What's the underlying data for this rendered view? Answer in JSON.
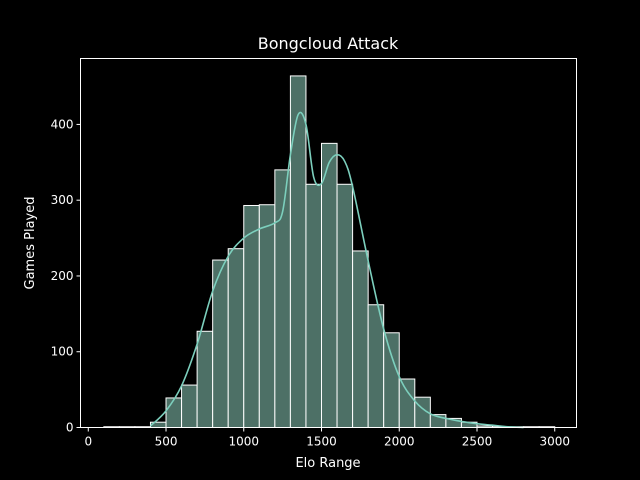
{
  "chart_data": {
    "type": "bar",
    "title": "Bongcloud Attack",
    "xlabel": "Elo Range",
    "ylabel": "Games Played",
    "xlim": [
      -50,
      3140
    ],
    "ylim": [
      0,
      487
    ],
    "xticks": [
      0,
      500,
      1000,
      1500,
      2000,
      2500,
      3000
    ],
    "yticks": [
      0,
      100,
      200,
      300,
      400
    ],
    "grid": false,
    "legend": "none",
    "bin_width": 100,
    "bin_starts": [
      100,
      200,
      300,
      400,
      500,
      600,
      700,
      800,
      900,
      1000,
      1100,
      1200,
      1300,
      1400,
      1500,
      1600,
      1700,
      1800,
      1900,
      2000,
      2100,
      2200,
      2300,
      2400,
      2500,
      2600,
      2700,
      2800,
      2900
    ],
    "values": [
      1,
      1,
      1,
      7,
      39,
      56,
      127,
      221,
      236,
      293,
      294,
      340,
      464,
      321,
      375,
      321,
      233,
      162,
      125,
      64,
      40,
      17,
      12,
      7,
      2,
      1,
      1,
      1,
      1
    ],
    "kde": {
      "x": [
        400,
        500,
        600,
        700,
        800,
        900,
        1000,
        1100,
        1200,
        1250,
        1300,
        1350,
        1400,
        1450,
        1500,
        1550,
        1600,
        1650,
        1700,
        1800,
        1900,
        2000,
        2100,
        2200,
        2300,
        2400,
        2500,
        2600,
        2700,
        2800
      ],
      "y": [
        2,
        22,
        55,
        110,
        180,
        226,
        250,
        262,
        270,
        285,
        360,
        413,
        400,
        330,
        322,
        350,
        360,
        351,
        318,
        220,
        130,
        67,
        35,
        18,
        12,
        8,
        5,
        3,
        1,
        0
      ]
    },
    "colors": {
      "bar_fill": "#4d7066",
      "bar_edge": "#ffffff",
      "kde_line": "#7ccfbd",
      "axes": "#ffffff",
      "background": "#000000"
    }
  }
}
